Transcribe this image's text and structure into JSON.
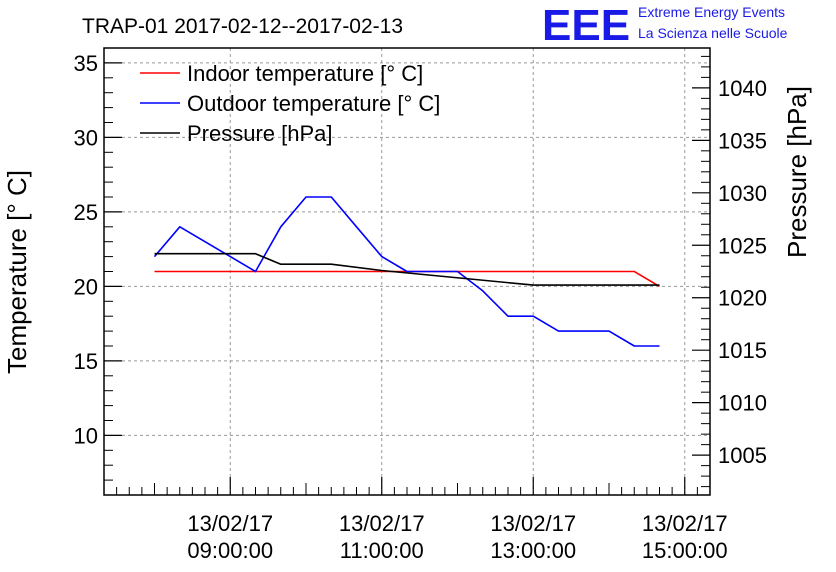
{
  "chart_data": {
    "type": "line",
    "title": "TRAP-01 2017-02-12--2017-02-13",
    "ylabel": "Temperature [° C]",
    "y2label": "Pressure [hPa]",
    "xlabel": "",
    "xlim": [
      "2017-02-13 07:20",
      "2017-02-13 15:20"
    ],
    "ylim": [
      6,
      36
    ],
    "y2lim": [
      1001.2,
      1043.8
    ],
    "x_ticks": [
      {
        "time": "2017-02-13 09:00",
        "date": "13/02/17",
        "clock": "09:00:00"
      },
      {
        "time": "2017-02-13 11:00",
        "date": "13/02/17",
        "clock": "11:00:00"
      },
      {
        "time": "2017-02-13 13:00",
        "date": "13/02/17",
        "clock": "13:00:00"
      },
      {
        "time": "2017-02-13 15:00",
        "date": "13/02/17",
        "clock": "15:00:00"
      }
    ],
    "y_ticks": [
      "10",
      "15",
      "20",
      "25",
      "30",
      "35"
    ],
    "y2_ticks": [
      "1005",
      "1010",
      "1015",
      "1020",
      "1025",
      "1030",
      "1035",
      "1040"
    ],
    "grid": true,
    "legend_position": "top-left",
    "series": [
      {
        "name": "Indoor temperature [° C]",
        "color": "#ff0000",
        "axis": "left",
        "x": [
          "2017-02-13 08:00",
          "2017-02-13 09:00",
          "2017-02-13 10:00",
          "2017-02-13 11:00",
          "2017-02-13 12:00",
          "2017-02-13 13:00",
          "2017-02-13 14:00",
          "2017-02-13 14:20",
          "2017-02-13 14:40"
        ],
        "values": [
          21,
          21,
          21,
          21,
          21,
          21,
          21,
          21,
          20
        ]
      },
      {
        "name": "Outdoor temperature [° C]",
        "color": "#0000ff",
        "axis": "left",
        "x": [
          "2017-02-13 08:00",
          "2017-02-13 08:20",
          "2017-02-13 08:40",
          "2017-02-13 09:00",
          "2017-02-13 09:20",
          "2017-02-13 09:40",
          "2017-02-13 10:00",
          "2017-02-13 10:20",
          "2017-02-13 10:40",
          "2017-02-13 11:00",
          "2017-02-13 11:20",
          "2017-02-13 11:40",
          "2017-02-13 12:00",
          "2017-02-13 12:20",
          "2017-02-13 12:40",
          "2017-02-13 13:00",
          "2017-02-13 13:20",
          "2017-02-13 13:40",
          "2017-02-13 14:00",
          "2017-02-13 14:20",
          "2017-02-13 14:40"
        ],
        "values": [
          22,
          24,
          23,
          22,
          21,
          24,
          26,
          26,
          24,
          22,
          21,
          21,
          21,
          19.7,
          18,
          18,
          17,
          17,
          17,
          16,
          16
        ]
      },
      {
        "name": "Pressure [hPa]",
        "color": "#000000",
        "axis": "right",
        "x": [
          "2017-02-13 08:00",
          "2017-02-13 09:20",
          "2017-02-13 09:40",
          "2017-02-13 10:20",
          "2017-02-13 11:00",
          "2017-02-13 13:00",
          "2017-02-13 14:40"
        ],
        "values": [
          1024.2,
          1024.2,
          1023.2,
          1023.2,
          1022.6,
          1021.2,
          1021.2
        ]
      }
    ]
  },
  "logo": {
    "mark": "EEE",
    "line1": "Extreme Energy Events",
    "line2": "La Scienza nelle Scuole"
  }
}
